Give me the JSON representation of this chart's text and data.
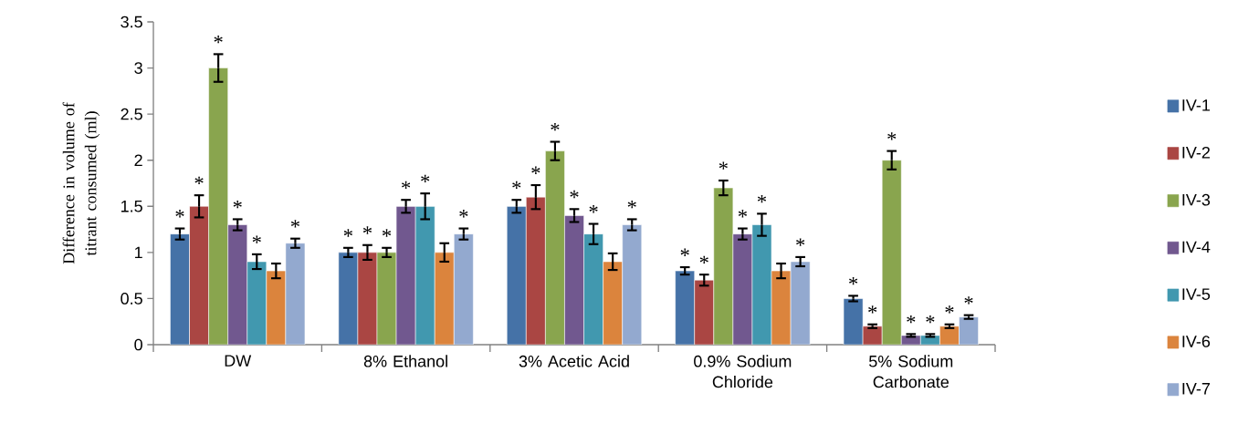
{
  "chart_data": {
    "type": "bar",
    "ylabel": "Difference in volume of titrant consumed (ml)",
    "categories": [
      "DW",
      "8% Ethanol",
      "3% Acetic Acid",
      "0.9% Sodium Chloride",
      "5% Sodium Carbonate"
    ],
    "ylim": [
      0,
      3.5
    ],
    "yticks": [
      0,
      0.5,
      1,
      1.5,
      2,
      2.5,
      3,
      3.5
    ],
    "grid": false,
    "legend": "right",
    "series": [
      {
        "name": "IV-1",
        "color": "#4572a7",
        "values": [
          1.2,
          1.0,
          1.5,
          0.8,
          0.5
        ],
        "errors": [
          0.06,
          0.05,
          0.07,
          0.04,
          0.03
        ],
        "value_labels": [
          "*",
          "*",
          "*",
          "*",
          "*"
        ]
      },
      {
        "name": "IV-2",
        "color": "#aa4643",
        "values": [
          1.5,
          1.0,
          1.6,
          0.7,
          0.2
        ],
        "errors": [
          0.12,
          0.08,
          0.13,
          0.06,
          0.02
        ],
        "value_labels": [
          "*",
          "*",
          "*",
          "*",
          "*"
        ]
      },
      {
        "name": "IV-3",
        "color": "#89a54e",
        "values": [
          3.0,
          1.0,
          2.1,
          1.7,
          2.0
        ],
        "errors": [
          0.15,
          0.05,
          0.1,
          0.08,
          0.1
        ],
        "value_labels": [
          "*",
          "*",
          "*",
          "*",
          "*"
        ]
      },
      {
        "name": "IV-4",
        "color": "#71588f",
        "values": [
          1.3,
          1.5,
          1.4,
          1.2,
          0.1
        ],
        "errors": [
          0.06,
          0.07,
          0.07,
          0.06,
          0.015
        ],
        "value_labels": [
          "*",
          "*",
          "*",
          "*",
          "*"
        ]
      },
      {
        "name": "IV-5",
        "color": "#4198af",
        "values": [
          0.9,
          1.5,
          1.2,
          1.3,
          0.1
        ],
        "errors": [
          0.08,
          0.14,
          0.11,
          0.12,
          0.015
        ],
        "value_labels": [
          "*",
          "*",
          "*",
          "*",
          "*"
        ]
      },
      {
        "name": "IV-6",
        "color": "#db843d",
        "values": [
          0.8,
          1.0,
          0.9,
          0.8,
          0.2
        ],
        "errors": [
          0.08,
          0.1,
          0.09,
          0.08,
          0.02
        ],
        "value_labels": [
          null,
          null,
          null,
          null,
          "*"
        ]
      },
      {
        "name": "IV-7",
        "color": "#93a9cf",
        "values": [
          1.1,
          1.2,
          1.3,
          0.9,
          0.3
        ],
        "errors": [
          0.05,
          0.06,
          0.06,
          0.05,
          0.02
        ],
        "value_labels": [
          "*",
          "*",
          "*",
          "*",
          "*"
        ]
      }
    ]
  }
}
